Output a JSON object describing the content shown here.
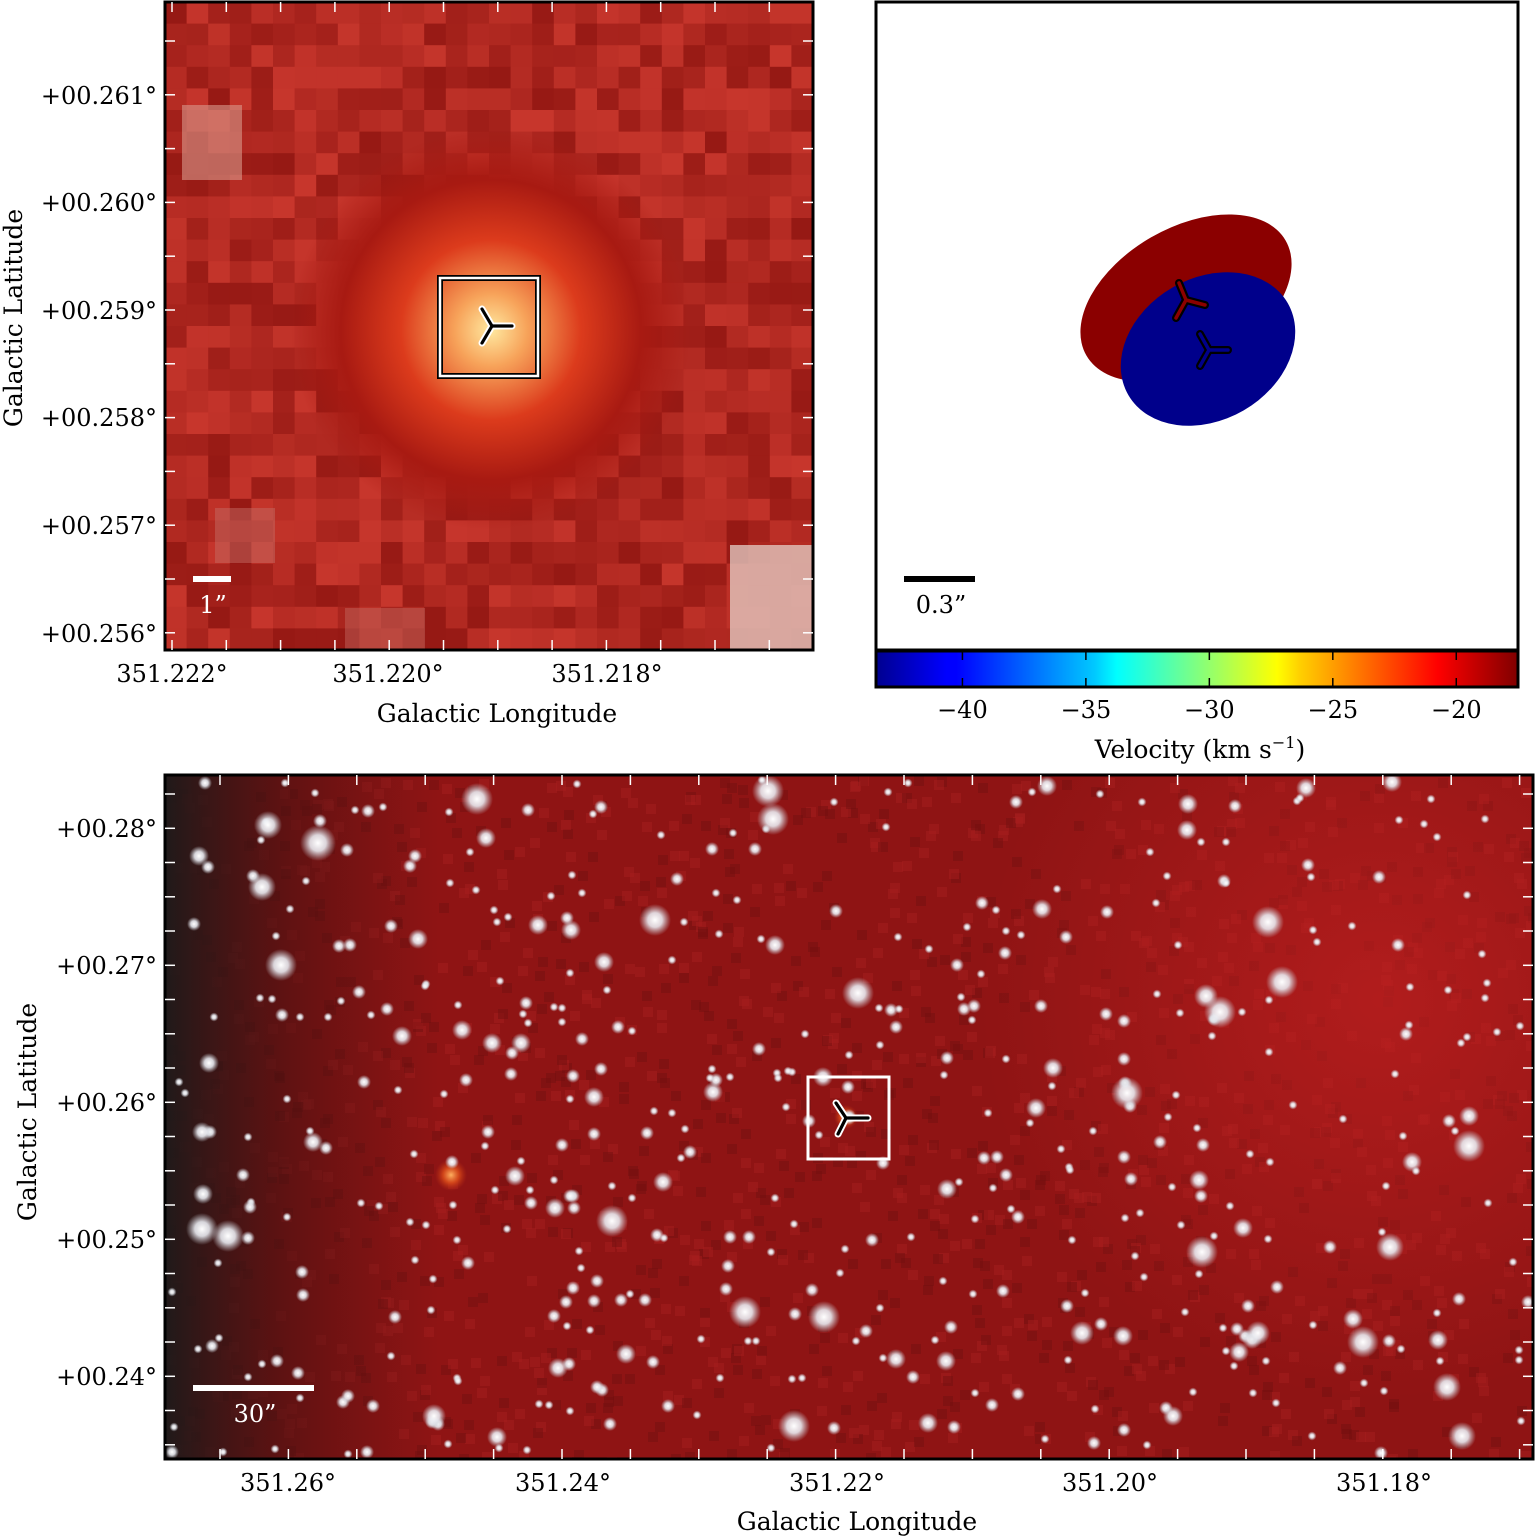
{
  "panels": {
    "zoom": {
      "xlabel": "Galactic Longitude",
      "ylabel": "Galactic Latitude",
      "xticks": [
        "351.222°",
        "351.220°",
        "351.218°"
      ],
      "yticks": [
        "+00.261°",
        "+00.260°",
        "+00.259°",
        "+00.258°",
        "+00.257°",
        "+00.256°"
      ],
      "scalebar": "1”"
    },
    "velocity": {
      "scalebar": "0.3”",
      "colorbar_label": "Velocity (km s",
      "colorbar_unit_exp": "−1",
      "colorbar_label_close": ")",
      "colorbar_ticks": [
        "−40",
        "−35",
        "−30",
        "−25",
        "−20"
      ],
      "colorbar_range": [
        -43.5,
        -17.5
      ],
      "red_lobe_velocity": -18.5,
      "blue_lobe_velocity": -42.5
    },
    "field": {
      "xlabel": "Galactic Longitude",
      "ylabel": "Galactic Latitude",
      "xticks": [
        "351.26°",
        "351.24°",
        "351.22°",
        "351.20°",
        "351.18°"
      ],
      "yticks": [
        "+00.28°",
        "+00.27°",
        "+00.26°",
        "+00.25°",
        "+00.24°"
      ],
      "scalebar": "30”"
    }
  },
  "colors": {
    "red_lobe": "#8b0000",
    "blue_lobe": "#00008b",
    "background_red": "#8f1414"
  }
}
